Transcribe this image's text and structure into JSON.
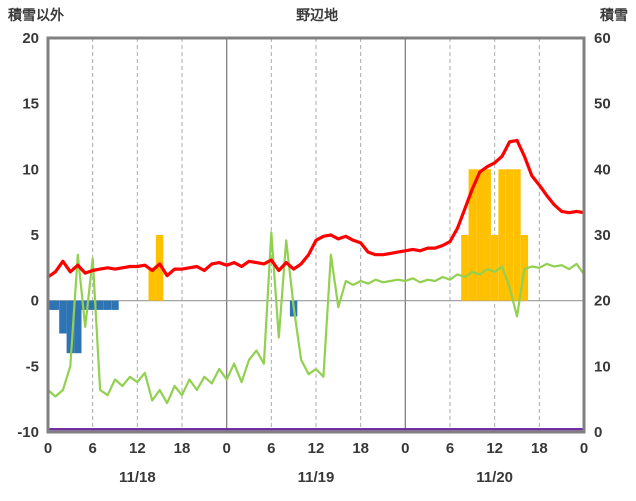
{
  "chart_data": {
    "type": "combo",
    "title": "野辺地",
    "left_axis": {
      "label": "積雪以外",
      "min": -10,
      "max": 20,
      "ticks": [
        20,
        15,
        10,
        5,
        0,
        -5,
        -10
      ]
    },
    "right_axis": {
      "label": "積雪",
      "min": 0,
      "max": 60,
      "ticks": [
        60,
        50,
        40,
        30,
        20,
        10,
        0
      ]
    },
    "x_axis": {
      "total_hours": 72,
      "tick_interval": 6,
      "tick_labels": [
        "0",
        "6",
        "12",
        "18",
        "0",
        "6",
        "12",
        "18",
        "0",
        "6",
        "12",
        "18",
        "0"
      ],
      "day_labels": [
        "11/18",
        "11/19",
        "11/20"
      ],
      "day_boundaries": [
        24,
        48
      ]
    },
    "grid": {
      "frame_color": "#808080",
      "dashed_color": "#ababab",
      "solid_color": "#808080",
      "zero_line_color": "#999999"
    },
    "series": [
      {
        "name": "blue-bars",
        "type": "bar",
        "axis": "left",
        "color": "#2e74b5",
        "bars": [
          {
            "hour": 0,
            "value": -0.7
          },
          {
            "hour": 1,
            "value": -0.7
          },
          {
            "hour": 2,
            "value": -2.5
          },
          {
            "hour": 3,
            "value": -4
          },
          {
            "hour": 4,
            "value": -4
          },
          {
            "hour": 5,
            "value": -0.7
          },
          {
            "hour": 6,
            "value": -0.7
          },
          {
            "hour": 7,
            "value": -0.7
          },
          {
            "hour": 8,
            "value": -0.7
          },
          {
            "hour": 9,
            "value": -0.7
          },
          {
            "hour": 33,
            "value": -1.2
          }
        ]
      },
      {
        "name": "orange-bars",
        "type": "bar",
        "axis": "left",
        "color": "#ffc000",
        "bars": [
          {
            "hour": 14,
            "value": 2.5
          },
          {
            "hour": 15,
            "value": 5
          },
          {
            "hour": 56,
            "value": 5
          },
          {
            "hour": 57,
            "value": 10
          },
          {
            "hour": 58,
            "value": 10
          },
          {
            "hour": 59,
            "value": 10
          },
          {
            "hour": 60,
            "value": 5
          },
          {
            "hour": 61,
            "value": 10
          },
          {
            "hour": 62,
            "value": 10
          },
          {
            "hour": 63,
            "value": 10
          },
          {
            "hour": 64,
            "value": 5
          }
        ]
      },
      {
        "name": "green-line",
        "type": "line",
        "axis": "left",
        "color": "#92d050",
        "stroke_width": 2.2,
        "values": [
          -6.8,
          -7.3,
          -6.8,
          -5.0,
          3.5,
          -2.0,
          3.2,
          -6.8,
          -7.2,
          -6.0,
          -6.5,
          -5.8,
          -6.2,
          -5.5,
          -7.6,
          -6.8,
          -7.8,
          -6.5,
          -7.2,
          -6.0,
          -6.8,
          -5.8,
          -6.3,
          -5.2,
          -6.0,
          -4.8,
          -6.2,
          -4.5,
          -3.8,
          -4.8,
          5.2,
          -2.8,
          4.6,
          -0.5,
          -4.5,
          -5.6,
          -5.2,
          -5.8,
          3.5,
          -0.5,
          1.5,
          1.2,
          1.5,
          1.3,
          1.6,
          1.4,
          1.5,
          1.6,
          1.5,
          1.7,
          1.4,
          1.6,
          1.5,
          1.8,
          1.6,
          2.0,
          1.8,
          2.2,
          2.0,
          2.4,
          2.2,
          2.6,
          1.0,
          -1.2,
          2.4,
          2.6,
          2.5,
          2.8,
          2.6,
          2.7,
          2.4,
          2.8,
          2.0
        ]
      },
      {
        "name": "red-line",
        "type": "line",
        "axis": "left",
        "color": "#ff0000",
        "stroke_width": 3.2,
        "values": [
          1.8,
          2.2,
          3.0,
          2.2,
          2.7,
          2.1,
          2.3,
          2.4,
          2.5,
          2.4,
          2.5,
          2.6,
          2.6,
          2.7,
          2.3,
          2.8,
          1.9,
          2.4,
          2.4,
          2.5,
          2.6,
          2.3,
          2.8,
          2.9,
          2.7,
          2.9,
          2.6,
          3.0,
          2.9,
          2.8,
          3.1,
          2.3,
          2.9,
          2.4,
          2.8,
          3.5,
          4.6,
          4.9,
          5.0,
          4.7,
          4.9,
          4.6,
          4.4,
          3.7,
          3.5,
          3.5,
          3.6,
          3.7,
          3.8,
          3.9,
          3.8,
          4.0,
          4.0,
          4.2,
          4.5,
          5.5,
          7.0,
          8.5,
          9.8,
          10.2,
          10.5,
          11.0,
          12.1,
          12.2,
          11.0,
          9.5,
          8.8,
          8.0,
          7.3,
          6.8,
          6.7,
          6.8,
          6.7
        ]
      },
      {
        "name": "purple-baseline",
        "type": "hline",
        "axis": "left",
        "color": "#7030a0",
        "stroke_width": 2.4,
        "value": -10
      }
    ]
  }
}
